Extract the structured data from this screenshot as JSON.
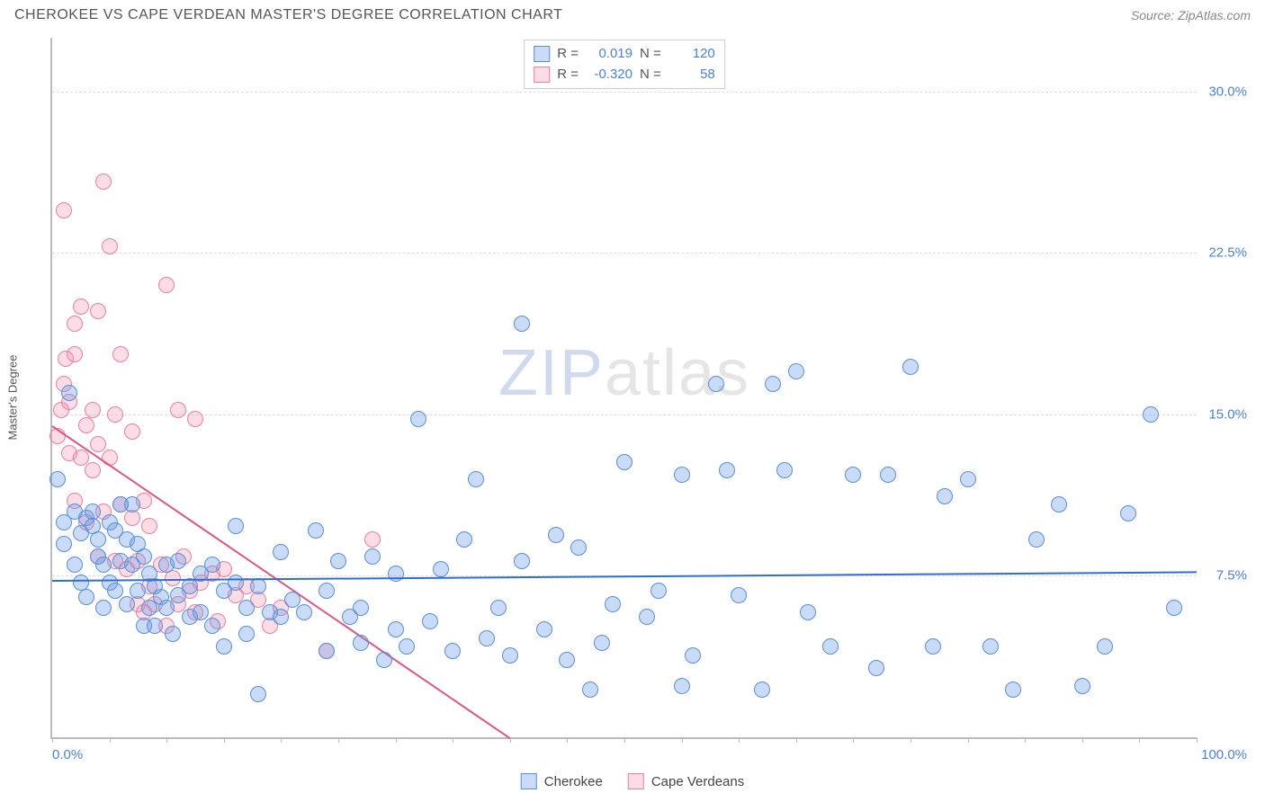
{
  "header": {
    "title": "CHEROKEE VS CAPE VERDEAN MASTER'S DEGREE CORRELATION CHART",
    "source": "Source: ZipAtlas.com"
  },
  "ylabel": "Master's Degree",
  "watermark": {
    "part1": "ZIP",
    "part2": "atlas"
  },
  "axes": {
    "xlim": [
      0,
      100
    ],
    "ylim": [
      0,
      32.5
    ],
    "xticks_pct": [
      0,
      5,
      10,
      15,
      20,
      25,
      30,
      35,
      40,
      45,
      50,
      55,
      60,
      65,
      70,
      75,
      80,
      85,
      90,
      95,
      100
    ],
    "yticks": [
      7.5,
      15.0,
      22.5,
      30.0
    ],
    "ytick_labels": [
      "7.5%",
      "15.0%",
      "22.5%",
      "30.0%"
    ],
    "x_left_label": "0.0%",
    "x_right_label": "100.0%",
    "grid_color": "#dddddd",
    "axis_color": "#bbbbbb",
    "label_color": "#4a80d6"
  },
  "series": {
    "cherokee": {
      "label": "Cherokee",
      "fill": "rgba(99,153,233,0.35)",
      "stroke": "#5a8fd6",
      "radius": 9,
      "R": "0.019",
      "N": "120",
      "trend": {
        "x1": 0,
        "y1": 7.3,
        "x2": 100,
        "y2": 7.7,
        "color": "#2f6fd0",
        "width": 2
      },
      "points": [
        [
          0.5,
          12.0
        ],
        [
          1,
          9
        ],
        [
          1,
          10
        ],
        [
          1.5,
          16
        ],
        [
          2,
          8
        ],
        [
          2,
          10.5
        ],
        [
          2.5,
          9.5
        ],
        [
          2.5,
          7.2
        ],
        [
          3,
          10.2
        ],
        [
          3,
          6.5
        ],
        [
          3.5,
          9.8
        ],
        [
          3.5,
          10.5
        ],
        [
          4,
          8.4
        ],
        [
          4,
          9.2
        ],
        [
          4.5,
          8
        ],
        [
          4.5,
          6.0
        ],
        [
          5,
          10.0
        ],
        [
          5,
          7.2
        ],
        [
          5.5,
          9.6
        ],
        [
          5.5,
          6.8
        ],
        [
          6,
          10.8
        ],
        [
          6,
          8.2
        ],
        [
          6.5,
          9.2
        ],
        [
          6.5,
          6.2
        ],
        [
          7,
          8.0
        ],
        [
          7,
          10.8
        ],
        [
          7.5,
          6.8
        ],
        [
          7.5,
          9.0
        ],
        [
          8,
          5.2
        ],
        [
          8,
          8.4
        ],
        [
          8.5,
          6.0
        ],
        [
          8.5,
          7.6
        ],
        [
          9,
          5.2
        ],
        [
          9,
          7.0
        ],
        [
          9.5,
          6.5
        ],
        [
          10,
          8.0
        ],
        [
          10,
          6.0
        ],
        [
          10.5,
          4.8
        ],
        [
          11,
          8.2
        ],
        [
          11,
          6.6
        ],
        [
          12,
          7.0
        ],
        [
          12,
          5.6
        ],
        [
          13,
          7.6
        ],
        [
          13,
          5.8
        ],
        [
          14,
          8.0
        ],
        [
          14,
          5.2
        ],
        [
          15,
          6.8
        ],
        [
          15,
          4.2
        ],
        [
          16,
          7.2
        ],
        [
          16,
          9.8
        ],
        [
          17,
          6.0
        ],
        [
          17,
          4.8
        ],
        [
          18,
          7.0
        ],
        [
          18,
          2.0
        ],
        [
          19,
          5.8
        ],
        [
          20,
          8.6
        ],
        [
          20,
          5.6
        ],
        [
          21,
          6.4
        ],
        [
          22,
          5.8
        ],
        [
          23,
          9.6
        ],
        [
          24,
          6.8
        ],
        [
          24,
          4.0
        ],
        [
          25,
          8.2
        ],
        [
          26,
          5.6
        ],
        [
          27,
          4.4
        ],
        [
          27,
          6.0
        ],
        [
          28,
          8.4
        ],
        [
          29,
          3.6
        ],
        [
          30,
          5.0
        ],
        [
          30,
          7.6
        ],
        [
          31,
          4.2
        ],
        [
          32,
          14.8
        ],
        [
          33,
          5.4
        ],
        [
          34,
          7.8
        ],
        [
          35,
          4.0
        ],
        [
          36,
          9.2
        ],
        [
          37,
          12.0
        ],
        [
          38,
          4.6
        ],
        [
          39,
          6.0
        ],
        [
          40,
          3.8
        ],
        [
          41,
          19.2
        ],
        [
          41,
          8.2
        ],
        [
          43,
          5.0
        ],
        [
          44,
          9.4
        ],
        [
          45,
          3.6
        ],
        [
          46,
          8.8
        ],
        [
          47,
          2.2
        ],
        [
          48,
          4.4
        ],
        [
          49,
          6.2
        ],
        [
          50,
          12.8
        ],
        [
          52,
          5.6
        ],
        [
          53,
          6.8
        ],
        [
          55,
          2.4
        ],
        [
          55,
          12.2
        ],
        [
          56,
          3.8
        ],
        [
          58,
          16.4
        ],
        [
          59,
          12.4
        ],
        [
          60,
          6.6
        ],
        [
          62,
          2.2
        ],
        [
          63,
          16.4
        ],
        [
          64,
          12.4
        ],
        [
          65,
          17.0
        ],
        [
          66,
          5.8
        ],
        [
          68,
          4.2
        ],
        [
          70,
          12.2
        ],
        [
          72,
          3.2
        ],
        [
          73,
          12.2
        ],
        [
          75,
          17.2
        ],
        [
          77,
          4.2
        ],
        [
          78,
          11.2
        ],
        [
          80,
          12.0
        ],
        [
          82,
          4.2
        ],
        [
          84,
          2.2
        ],
        [
          86,
          9.2
        ],
        [
          88,
          10.8
        ],
        [
          90,
          2.4
        ],
        [
          92,
          4.2
        ],
        [
          94,
          10.4
        ],
        [
          96,
          15.0
        ],
        [
          98,
          6.0
        ]
      ]
    },
    "cape": {
      "label": "Cape Verdeans",
      "fill": "rgba(244,140,170,0.30)",
      "stroke": "#e97fa3",
      "radius": 9,
      "R": "-0.320",
      "N": "58",
      "trend": {
        "x1": 0,
        "y1": 14.5,
        "x2": 40,
        "y2": 0,
        "color": "#e15584",
        "width": 2
      },
      "points": [
        [
          0.5,
          14.0
        ],
        [
          0.8,
          15.2
        ],
        [
          1,
          16.4
        ],
        [
          1,
          24.5
        ],
        [
          1.2,
          17.6
        ],
        [
          1.5,
          13.2
        ],
        [
          1.5,
          15.6
        ],
        [
          2,
          11.0
        ],
        [
          2,
          17.8
        ],
        [
          2,
          19.2
        ],
        [
          2.5,
          13.0
        ],
        [
          2.5,
          20.0
        ],
        [
          3,
          14.5
        ],
        [
          3,
          10.0
        ],
        [
          3.5,
          12.4
        ],
        [
          3.5,
          15.2
        ],
        [
          4,
          19.8
        ],
        [
          4,
          13.6
        ],
        [
          4,
          8.4
        ],
        [
          4.5,
          10.5
        ],
        [
          4.5,
          25.8
        ],
        [
          5,
          13.0
        ],
        [
          5,
          22.8
        ],
        [
          5.5,
          15.0
        ],
        [
          5.5,
          8.2
        ],
        [
          6,
          10.8
        ],
        [
          6,
          17.8
        ],
        [
          6.5,
          7.8
        ],
        [
          7,
          10.2
        ],
        [
          7,
          14.2
        ],
        [
          7.5,
          8.2
        ],
        [
          7.5,
          6.2
        ],
        [
          8,
          11.0
        ],
        [
          8,
          5.8
        ],
        [
          8.5,
          7.0
        ],
        [
          8.5,
          9.8
        ],
        [
          9,
          6.2
        ],
        [
          9.5,
          8.0
        ],
        [
          10,
          5.2
        ],
        [
          10,
          21.0
        ],
        [
          10.5,
          7.4
        ],
        [
          11,
          6.2
        ],
        [
          11,
          15.2
        ],
        [
          11.5,
          8.4
        ],
        [
          12,
          6.8
        ],
        [
          12.5,
          5.8
        ],
        [
          12.5,
          14.8
        ],
        [
          13,
          7.2
        ],
        [
          14,
          7.6
        ],
        [
          14.5,
          5.4
        ],
        [
          15,
          7.8
        ],
        [
          16,
          6.6
        ],
        [
          17,
          7.0
        ],
        [
          18,
          6.4
        ],
        [
          19,
          5.2
        ],
        [
          20,
          6.0
        ],
        [
          24,
          4.0
        ],
        [
          28,
          9.2
        ]
      ]
    }
  },
  "bottom_legend": {
    "items": [
      {
        "key": "cherokee",
        "label": "Cherokee"
      },
      {
        "key": "cape",
        "label": "Cape Verdeans"
      }
    ]
  }
}
